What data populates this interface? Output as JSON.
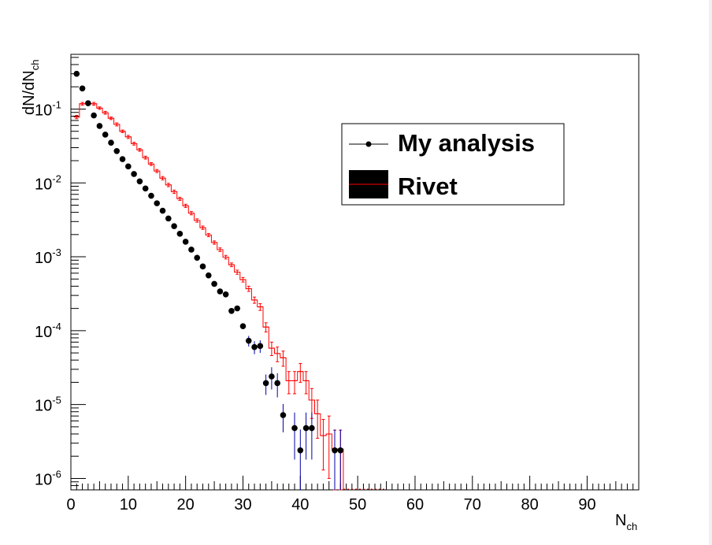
{
  "chart_data": {
    "type": "scatter",
    "xlabel": "N",
    "xlabel_sub": "ch",
    "ylabel": "dN/dN",
    "ylabel_sub": "ch",
    "yscale": "log",
    "xlim": [
      0,
      99
    ],
    "ylim": [
      7e-07,
      0.55
    ],
    "x_ticks": [
      "0",
      "10",
      "20",
      "30",
      "40",
      "50",
      "60",
      "70",
      "80",
      "90"
    ],
    "y_ticks": [
      {
        "base": "10",
        "exp": "-1",
        "value": 0.1
      },
      {
        "base": "10",
        "exp": "-2",
        "value": 0.01
      },
      {
        "base": "10",
        "exp": "-3",
        "value": 0.001
      },
      {
        "base": "10",
        "exp": "-4",
        "value": 0.0001
      },
      {
        "base": "10",
        "exp": "-5",
        "value": 1e-05
      },
      {
        "base": "10",
        "exp": "-6",
        "value": 1e-06
      }
    ],
    "grid": false,
    "legend_position": "upper-right",
    "series": [
      {
        "name": "My analysis",
        "style": "markers",
        "color": "#000000",
        "error_color": "#0000aa",
        "points": [
          [
            1,
            0.3,
            0
          ],
          [
            2,
            0.19,
            0
          ],
          [
            3,
            0.12,
            0
          ],
          [
            4,
            0.082,
            0
          ],
          [
            5,
            0.059,
            0
          ],
          [
            6,
            0.045,
            0
          ],
          [
            7,
            0.035,
            0
          ],
          [
            8,
            0.027,
            0
          ],
          [
            9,
            0.021,
            0
          ],
          [
            10,
            0.0167,
            0
          ],
          [
            11,
            0.0132,
            0
          ],
          [
            12,
            0.0105,
            0
          ],
          [
            13,
            0.0084,
            0
          ],
          [
            14,
            0.0067,
            0
          ],
          [
            15,
            0.0053,
            0
          ],
          [
            16,
            0.0042,
            0
          ],
          [
            17,
            0.0033,
            0
          ],
          [
            18,
            0.0026,
            0
          ],
          [
            19,
            0.00205,
            0
          ],
          [
            20,
            0.0016,
            0
          ],
          [
            21,
            0.00125,
            0
          ],
          [
            22,
            0.00097,
            0
          ],
          [
            23,
            0.00074,
            0
          ],
          [
            24,
            0.00056,
            0
          ],
          [
            25,
            0.00043,
            0
          ],
          [
            26,
            0.00034,
            0
          ],
          [
            27,
            0.00031,
            0
          ],
          [
            28,
            0.000185,
            0
          ],
          [
            29,
            0.0002,
            0
          ],
          [
            30,
            0.000115,
            0
          ],
          [
            31,
            7.3e-05,
            1.2e-05
          ],
          [
            32,
            6e-05,
            1.2e-05
          ],
          [
            33,
            6.2e-05,
            1.2e-05
          ],
          [
            34,
            1.95e-05,
            6e-06
          ],
          [
            35,
            2.4e-05,
            8e-06
          ],
          [
            36,
            1.95e-05,
            7e-06
          ],
          [
            37,
            7.2e-06,
            3e-06
          ],
          [
            39,
            4.8e-06,
            3e-06
          ],
          [
            40,
            2.4e-06,
            2.2e-06
          ],
          [
            41,
            4.8e-06,
            3e-06
          ],
          [
            42,
            4.8e-06,
            3e-06
          ],
          [
            46,
            2.4e-06,
            2.2e-06
          ],
          [
            47,
            2.4e-06,
            2.2e-06
          ]
        ]
      },
      {
        "name": "Rivet",
        "style": "line",
        "color": "#ff0000",
        "points": [
          [
            1,
            0.078,
            0.004
          ],
          [
            2,
            0.118,
            0.005
          ],
          [
            3,
            0.12,
            0.005
          ],
          [
            4,
            0.118,
            0.005
          ],
          [
            5,
            0.103,
            0.004
          ],
          [
            6,
            0.089,
            0.004
          ],
          [
            7,
            0.075,
            0.003
          ],
          [
            8,
            0.062,
            0.003
          ],
          [
            9,
            0.05,
            0.002
          ],
          [
            10,
            0.042,
            0.002
          ],
          [
            11,
            0.034,
            0.0015
          ],
          [
            12,
            0.028,
            0.0012
          ],
          [
            13,
            0.022,
            0.001
          ],
          [
            14,
            0.018,
            0.0008
          ],
          [
            15,
            0.0145,
            0.0007
          ],
          [
            16,
            0.0116,
            0.0006
          ],
          [
            17,
            0.0094,
            0.0005
          ],
          [
            18,
            0.0076,
            0.0004
          ],
          [
            19,
            0.0061,
            0.0003
          ],
          [
            20,
            0.0049,
            0.00025
          ],
          [
            21,
            0.0039,
            0.0002
          ],
          [
            22,
            0.0031,
            0.00016
          ],
          [
            23,
            0.00248,
            0.00013
          ],
          [
            24,
            0.00197,
            0.0001
          ],
          [
            25,
            0.00156,
            8e-05
          ],
          [
            26,
            0.00125,
            7e-05
          ],
          [
            27,
            0.00099,
            5.5e-05
          ],
          [
            28,
            0.00078,
            4.5e-05
          ],
          [
            29,
            0.00062,
            4e-05
          ],
          [
            30,
            0.00049,
            3.5e-05
          ],
          [
            31,
            0.00037,
            3e-05
          ],
          [
            32,
            0.00026,
            2.5e-05
          ],
          [
            33,
            0.00021,
            2.2e-05
          ],
          [
            34,
            0.000112,
            1.6e-05
          ],
          [
            35,
            5.8e-05,
            1.2e-05
          ],
          [
            36,
            4.9e-05,
            1.1e-05
          ],
          [
            37,
            4.3e-05,
            1e-05
          ],
          [
            38,
            2.1e-05,
            7e-06
          ],
          [
            39,
            2.1e-05,
            7e-06
          ],
          [
            40,
            2.8e-05,
            8e-06
          ],
          [
            41,
            2.1e-05,
            7e-06
          ],
          [
            42,
            1.15e-05,
            5e-06
          ],
          [
            43,
            7.5e-06,
            4e-06
          ],
          [
            44,
            3.8e-06,
            2.5e-06
          ],
          [
            45,
            4e-06,
            3e-06
          ],
          [
            46,
            2.5e-06,
            2e-06
          ],
          [
            47,
            2.5e-06,
            2e-06
          ]
        ]
      }
    ]
  }
}
